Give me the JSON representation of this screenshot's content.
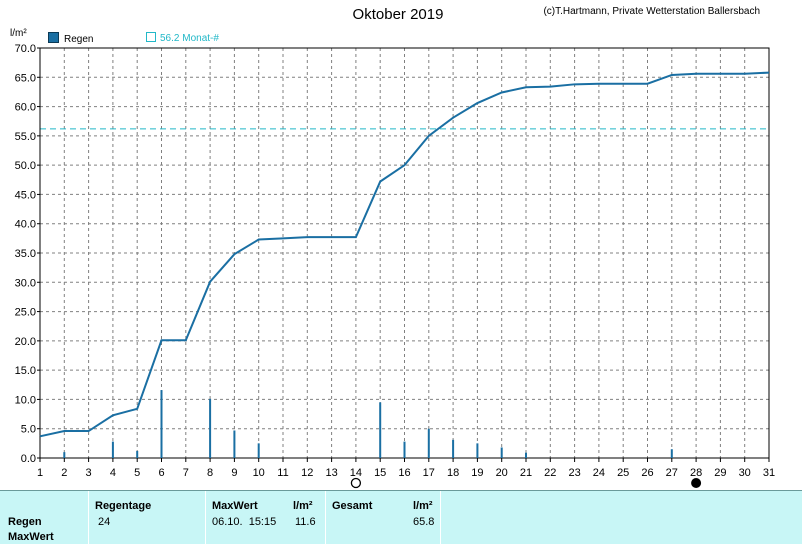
{
  "chart_data": {
    "type": "line",
    "title": "Oktober 2019",
    "copyright": "(c)T.Hartmann, Private Wetterstation Ballersbach",
    "ylabel": "l/m²",
    "ylim": [
      0,
      70
    ],
    "xlim": [
      1,
      31
    ],
    "yticks": [
      "0.0",
      "5.0",
      "10.0",
      "15.0",
      "20.0",
      "25.0",
      "30.0",
      "35.0",
      "40.0",
      "45.0",
      "50.0",
      "55.0",
      "60.0",
      "65.0",
      "70.0"
    ],
    "xticks": [
      "1",
      "2",
      "3",
      "4",
      "5",
      "6",
      "7",
      "8",
      "9",
      "10",
      "11",
      "12",
      "13",
      "14",
      "15",
      "16",
      "17",
      "18",
      "19",
      "20",
      "21",
      "22",
      "23",
      "24",
      "25",
      "26",
      "27",
      "28",
      "29",
      "30",
      "31"
    ],
    "grid": true,
    "legend": [
      {
        "name": "Regen",
        "color": "#1a6fa3"
      },
      {
        "name": "56.2 Monat-#",
        "color": "#22b8c8"
      }
    ],
    "reference_line": {
      "name": "56.2 Monat-#",
      "value": 56.2
    },
    "cumulative": {
      "name": "Regen",
      "x": [
        1,
        2,
        3,
        4,
        5,
        6,
        7,
        8,
        9,
        10,
        11,
        12,
        13,
        14,
        15,
        16,
        17,
        18,
        19,
        20,
        21,
        22,
        23,
        24,
        25,
        26,
        27,
        28,
        29,
        30,
        31
      ],
      "values": [
        3.7,
        4.6,
        4.6,
        7.3,
        8.4,
        20.1,
        20.1,
        30.1,
        34.8,
        37.3,
        37.5,
        37.7,
        37.7,
        37.7,
        47.2,
        50.0,
        55.0,
        58.1,
        60.6,
        62.4,
        63.3,
        63.4,
        63.8,
        63.9,
        63.9,
        63.9,
        65.4,
        65.6,
        65.6,
        65.6,
        65.8
      ]
    },
    "daily_bars": {
      "x": [
        2,
        4,
        5,
        6,
        8,
        9,
        10,
        15,
        16,
        17,
        18,
        19,
        20,
        21,
        27
      ],
      "values": [
        1.0,
        2.8,
        1.2,
        11.6,
        10.1,
        4.7,
        2.5,
        9.5,
        2.8,
        5.0,
        3.1,
        2.5,
        1.8,
        0.9,
        1.5
      ]
    },
    "moon_markers": [
      {
        "day": 14,
        "phase": "full"
      },
      {
        "day": 28,
        "phase": "new"
      }
    ]
  },
  "stats": {
    "row_labels": [
      "Regen",
      "MaxWert"
    ],
    "col_regentage_label": "Regentage",
    "regentage_value": "24",
    "col_maxwert_label": "MaxWert",
    "maxwert_unit_label": "l/m²",
    "maxwert_date": "06.10.  15:15",
    "maxwert_value": "11.6",
    "col_gesamt_label": "Gesamt",
    "gesamt_unit_label": "l/m²",
    "gesamt_value": "65.8"
  }
}
